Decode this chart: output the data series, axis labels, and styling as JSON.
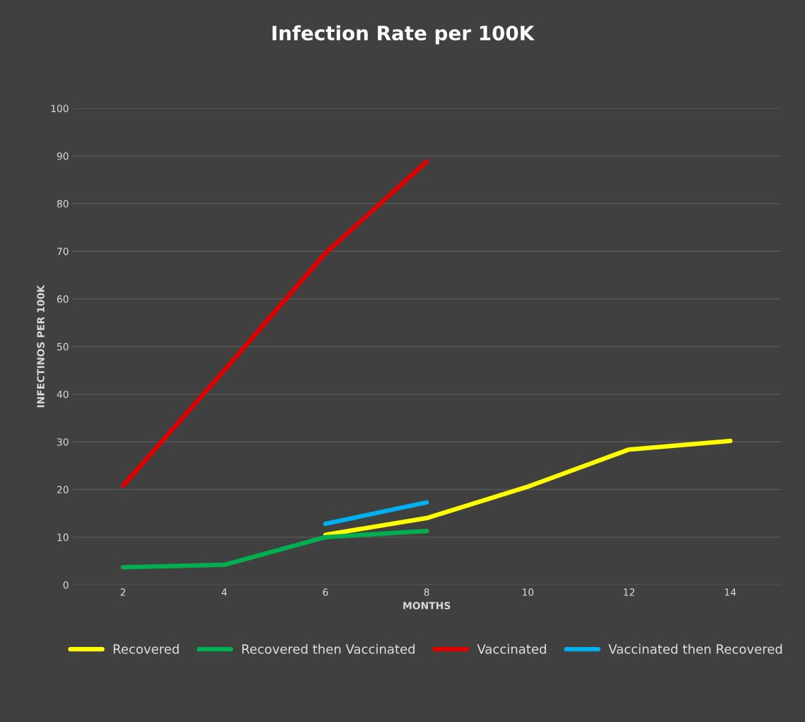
{
  "chart_data": {
    "type": "line",
    "title": "Infection Rate per 100K",
    "xlabel": "MONTHS",
    "ylabel": "INFECTINOS PER 100K",
    "xlim": [
      1,
      15
    ],
    "xticks": [
      2,
      4,
      6,
      8,
      10,
      12,
      14
    ],
    "ylim": [
      0,
      100
    ],
    "yticks": [
      0,
      10,
      20,
      30,
      40,
      50,
      60,
      70,
      80,
      90,
      100
    ],
    "grid": "y",
    "legend": "bottom",
    "marker": "none",
    "line_style": "solid",
    "series": [
      {
        "name": "Recovered",
        "color": "#ffff00",
        "x": [
          6,
          8,
          10,
          12,
          14
        ],
        "values": [
          10.5,
          14,
          20.6,
          28.4,
          30.2
        ]
      },
      {
        "name": "Recovered then Vaccinated",
        "color": "#00b050",
        "x": [
          2,
          4,
          6,
          8
        ],
        "values": [
          3.7,
          4.2,
          10,
          11.3
        ]
      },
      {
        "name": "Vaccinated",
        "color": "#e00000",
        "x": [
          2,
          4,
          6,
          8
        ],
        "values": [
          20.8,
          45,
          69.6,
          88.8
        ]
      },
      {
        "name": "Vaccinated then Recovered",
        "color": "#00b0f0",
        "x": [
          6,
          8
        ],
        "values": [
          12.8,
          17.3
        ]
      }
    ]
  }
}
